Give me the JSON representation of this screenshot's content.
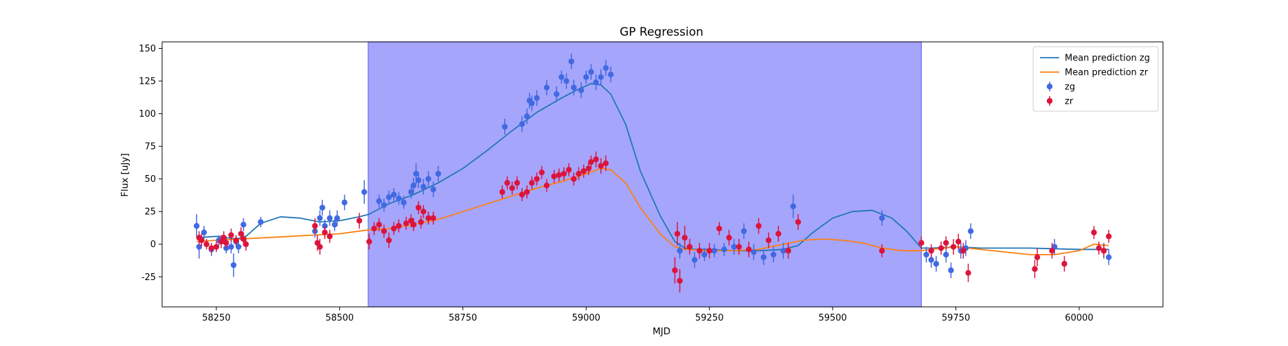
{
  "colors": {
    "zg_line": "#1f77b4",
    "zr_line": "#ff7f0e",
    "zg_points": "#4169e1",
    "zr_points": "#dc143c",
    "span_fill": "#a5a5fc",
    "span_edge": "#6b6bf0"
  },
  "chart_data": {
    "type": "scatter",
    "title": "GP Regression",
    "xlabel": "MJD",
    "ylabel": "Flux [uJy]",
    "xlim": [
      58140,
      60170
    ],
    "ylim": [
      -48,
      155
    ],
    "xticks": [
      58250,
      58500,
      58750,
      59000,
      59250,
      59500,
      59750,
      60000
    ],
    "yticks": [
      -25,
      0,
      25,
      50,
      75,
      100,
      125,
      150
    ],
    "grid": false,
    "legend_placement": "top-right",
    "shaded_span": [
      58558,
      59680
    ],
    "legend": [
      {
        "label": "Mean prediction zg",
        "kind": "line",
        "series": "zg_mean"
      },
      {
        "label": "Mean prediction zr",
        "kind": "line",
        "series": "zr_mean"
      },
      {
        "label": "zg",
        "kind": "errorbar",
        "series": "zg"
      },
      {
        "label": "zr",
        "kind": "errorbar",
        "series": "zr"
      }
    ],
    "lines": {
      "zg_mean": {
        "name": "Mean prediction zg",
        "x": [
          58210,
          58250,
          58290,
          58310,
          58340,
          58380,
          58420,
          58460,
          58500,
          58540,
          58560,
          58600,
          58650,
          58700,
          58750,
          58800,
          58850,
          58900,
          58950,
          58980,
          59010,
          59030,
          59050,
          59080,
          59110,
          59150,
          59180,
          59200,
          59220,
          59250,
          59300,
          59350,
          59400,
          59430,
          59460,
          59500,
          59540,
          59580,
          59620,
          59650,
          59680,
          59700,
          59750,
          59800,
          59900,
          60000,
          60060
        ],
        "y": [
          5,
          6,
          4,
          6,
          16,
          21,
          20,
          17,
          18,
          21,
          23,
          31,
          38,
          47,
          58,
          72,
          87,
          101,
          112,
          118,
          123,
          122,
          115,
          92,
          56,
          22,
          2,
          -3,
          -4,
          -4,
          -5,
          -5,
          -4,
          -1,
          9,
          20,
          25,
          26,
          20,
          10,
          -3,
          -3,
          -2,
          -3,
          -3,
          -4,
          -4
        ]
      },
      "zr_mean": {
        "name": "Mean prediction zr",
        "x": [
          58210,
          58250,
          58300,
          58350,
          58400,
          58450,
          58500,
          58560,
          58600,
          58650,
          58700,
          58750,
          58800,
          58850,
          58900,
          58950,
          59000,
          59030,
          59050,
          59080,
          59110,
          59150,
          59180,
          59200,
          59250,
          59300,
          59350,
          59400,
          59440,
          59480,
          59520,
          59560,
          59600,
          59640,
          59680,
          59700,
          59750,
          59800,
          59850,
          59900,
          59950,
          60000,
          60030,
          60060
        ],
        "y": [
          2,
          3,
          4,
          5,
          6,
          7,
          8,
          11,
          12,
          15,
          19,
          25,
          31,
          37,
          43,
          48,
          54,
          58,
          57,
          47,
          28,
          8,
          -2,
          -4,
          -5,
          -5,
          -4,
          0,
          3,
          4,
          3,
          1,
          -3,
          -5,
          -5,
          -4,
          -2,
          -4,
          -6,
          -8,
          -8,
          -5,
          0,
          -1
        ]
      }
    },
    "series": [
      {
        "name": "zg",
        "x": [
          58210,
          58215,
          58225,
          58240,
          58255,
          58265,
          58270,
          58280,
          58285,
          58290,
          58295,
          58305,
          58340,
          58450,
          58460,
          58465,
          58470,
          58480,
          58490,
          58495,
          58510,
          58550,
          58580,
          58590,
          58600,
          58610,
          58620,
          58630,
          58645,
          58650,
          58655,
          58660,
          58670,
          58680,
          58690,
          58700,
          58835,
          58870,
          58880,
          58885,
          58890,
          58900,
          58920,
          58940,
          58950,
          58960,
          58970,
          58975,
          58990,
          59000,
          59010,
          59020,
          59030,
          59040,
          59050,
          59190,
          59220,
          59240,
          59260,
          59280,
          59300,
          59320,
          59340,
          59360,
          59380,
          59400,
          59420,
          59600,
          59690,
          59700,
          59710,
          59730,
          59740,
          59760,
          59770,
          59780,
          59950,
          60050,
          60060
        ],
        "y": [
          14,
          -2,
          9,
          -4,
          3,
          4,
          -3,
          -2,
          -16,
          2,
          -2,
          15,
          17,
          10,
          20,
          28,
          14,
          20,
          15,
          20,
          32,
          40,
          33,
          30,
          36,
          38,
          35,
          32,
          40,
          45,
          54,
          49,
          44,
          50,
          42,
          54,
          90,
          92,
          98,
          110,
          108,
          112,
          120,
          115,
          128,
          125,
          140,
          120,
          118,
          128,
          132,
          124,
          128,
          135,
          130,
          -5,
          -12,
          -8,
          -5,
          -4,
          -2,
          10,
          -6,
          -10,
          -8,
          -5,
          29,
          20,
          -8,
          -12,
          -15,
          -8,
          -20,
          -5,
          -3,
          10,
          -2,
          -5,
          -10
        ],
        "err": [
          9,
          9,
          5,
          5,
          4,
          4,
          4,
          5,
          9,
          4,
          5,
          5,
          4,
          5,
          6,
          6,
          5,
          6,
          5,
          6,
          6,
          9,
          5,
          5,
          5,
          5,
          5,
          5,
          5,
          6,
          8,
          6,
          6,
          6,
          6,
          6,
          6,
          6,
          6,
          6,
          6,
          6,
          6,
          6,
          5,
          6,
          6,
          6,
          6,
          5,
          6,
          6,
          6,
          6,
          6,
          6,
          6,
          5,
          5,
          5,
          6,
          6,
          6,
          6,
          6,
          6,
          9,
          6,
          6,
          6,
          6,
          6,
          6,
          6,
          6,
          6,
          6,
          6,
          6
        ]
      },
      {
        "name": "zr",
        "x": [
          58215,
          58220,
          58230,
          58240,
          58250,
          58260,
          58265,
          58270,
          58280,
          58290,
          58300,
          58305,
          58310,
          58450,
          58455,
          58460,
          58470,
          58480,
          58540,
          58560,
          58570,
          58580,
          58590,
          58600,
          58610,
          58620,
          58635,
          58645,
          58650,
          58660,
          58665,
          58670,
          58680,
          58690,
          58830,
          58840,
          58850,
          58860,
          58870,
          58880,
          58890,
          58900,
          58910,
          58920,
          58935,
          58945,
          58955,
          58965,
          58975,
          58985,
          58995,
          59005,
          59010,
          59020,
          59030,
          59040,
          59180,
          59185,
          59190,
          59200,
          59210,
          59230,
          59250,
          59270,
          59290,
          59310,
          59330,
          59350,
          59370,
          59390,
          59410,
          59430,
          59600,
          59680,
          59700,
          59720,
          59730,
          59745,
          59755,
          59765,
          59775,
          59910,
          59915,
          59945,
          59970,
          60030,
          60040,
          60050,
          60060
        ],
        "y": [
          5,
          3,
          0,
          -3,
          -2,
          2,
          5,
          1,
          7,
          3,
          8,
          4,
          0,
          14,
          1,
          -2,
          9,
          6,
          18,
          2,
          12,
          15,
          10,
          3,
          12,
          14,
          16,
          18,
          15,
          28,
          17,
          25,
          20,
          20,
          40,
          47,
          43,
          47,
          38,
          40,
          47,
          50,
          55,
          45,
          52,
          53,
          54,
          57,
          50,
          54,
          56,
          58,
          63,
          65,
          60,
          62,
          -20,
          8,
          -28,
          5,
          -2,
          -5,
          -5,
          12,
          5,
          -2,
          -4,
          14,
          3,
          8,
          -5,
          17,
          -5,
          1,
          -5,
          -3,
          1,
          -2,
          2,
          -5,
          -22,
          -19,
          -10,
          -5,
          -15,
          9,
          -3,
          -5,
          6
        ],
        "err": [
          5,
          5,
          4,
          4,
          4,
          5,
          5,
          4,
          5,
          4,
          5,
          5,
          5,
          6,
          6,
          6,
          5,
          5,
          6,
          6,
          5,
          5,
          5,
          6,
          5,
          5,
          5,
          5,
          5,
          5,
          5,
          5,
          5,
          5,
          5,
          5,
          5,
          5,
          5,
          5,
          5,
          5,
          5,
          5,
          5,
          5,
          5,
          5,
          5,
          5,
          5,
          5,
          5,
          6,
          6,
          6,
          10,
          9,
          9,
          9,
          6,
          6,
          6,
          5,
          6,
          6,
          6,
          6,
          6,
          6,
          6,
          6,
          5,
          5,
          5,
          5,
          5,
          6,
          6,
          6,
          7,
          7,
          7,
          6,
          6,
          5,
          5,
          5,
          5
        ]
      }
    ]
  }
}
